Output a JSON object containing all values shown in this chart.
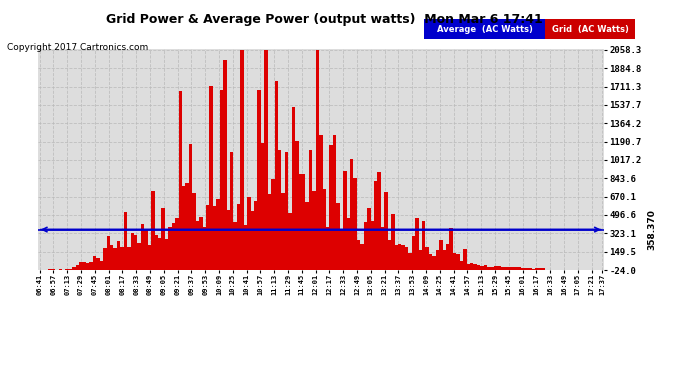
{
  "title": "Grid Power & Average Power (output watts)  Mon Mar 6 17:41",
  "copyright": "Copyright 2017 Cartronics.com",
  "avg_value": 358.37,
  "yticks_right": [
    2058.3,
    1884.8,
    1711.3,
    1537.7,
    1364.2,
    1190.7,
    1017.2,
    843.6,
    670.1,
    496.6,
    323.1,
    149.5,
    -24.0
  ],
  "ymin": -24.0,
  "ymax": 2058.3,
  "grid_color": "#bbbbbb",
  "bar_color": "#dd0000",
  "avg_line_color": "#0000cc",
  "background_color": "#ffffff",
  "plot_bg_color": "#dddddd",
  "num_points": 165,
  "time_labels": [
    "06:41",
    "06:57",
    "07:13",
    "07:29",
    "07:45",
    "08:01",
    "08:17",
    "08:33",
    "08:49",
    "09:05",
    "09:21",
    "09:37",
    "09:53",
    "10:09",
    "10:25",
    "10:41",
    "10:57",
    "11:13",
    "11:29",
    "11:45",
    "12:01",
    "12:17",
    "12:33",
    "12:49",
    "13:05",
    "13:21",
    "13:37",
    "13:53",
    "14:09",
    "14:25",
    "14:41",
    "14:57",
    "15:13",
    "15:29",
    "15:45",
    "16:01",
    "16:17",
    "16:33",
    "16:49",
    "17:05",
    "17:21",
    "17:37"
  ],
  "tick_every": 4
}
